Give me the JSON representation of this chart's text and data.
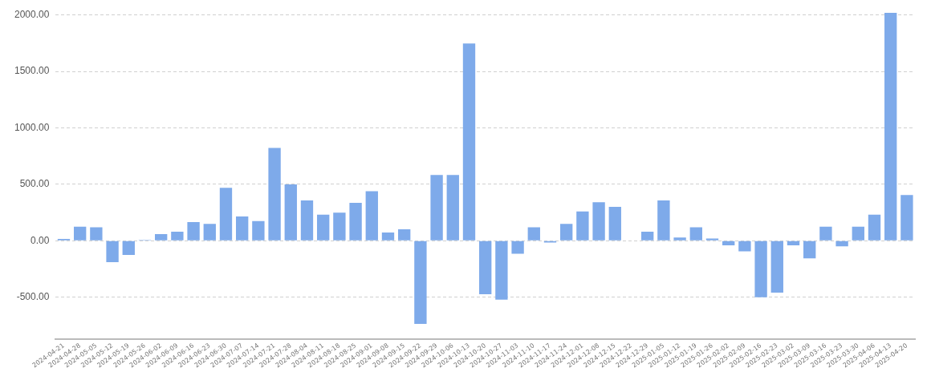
{
  "chart_data": {
    "type": "bar",
    "categories": [
      "2024-04-21",
      "2024-04-28",
      "2024-05-05",
      "2024-05-12",
      "2024-05-19",
      "2024-05-26",
      "2024-06-02",
      "2024-06-09",
      "2024-06-16",
      "2024-06-23",
      "2024-06-30",
      "2024-07-07",
      "2024-07-14",
      "2024-07-21",
      "2024-07-28",
      "2024-08-04",
      "2024-08-11",
      "2024-08-18",
      "2024-08-25",
      "2024-09-01",
      "2024-09-08",
      "2024-09-15",
      "2024-09-22",
      "2024-09-29",
      "2024-10-06",
      "2024-10-13",
      "2024-10-20",
      "2024-10-27",
      "2024-11-03",
      "2024-11-10",
      "2024-11-17",
      "2024-11-24",
      "2024-12-01",
      "2024-12-08",
      "2024-12-15",
      "2024-12-22",
      "2024-12-29",
      "2025-01-05",
      "2025-01-12",
      "2025-01-19",
      "2025-01-26",
      "2025-02-02",
      "2025-02-09",
      "2025-02-16",
      "2025-02-23",
      "2025-03-02",
      "2025-03-09",
      "2025-03-16",
      "2025-03-23",
      "2025-03-30",
      "2025-04-06",
      "2025-04-13",
      "2025-04-20"
    ],
    "values": [
      17,
      125,
      120,
      -189,
      -125,
      7,
      59,
      80,
      165,
      149,
      469,
      215,
      175,
      823,
      500,
      358,
      231,
      248,
      335,
      439,
      73,
      101,
      -736,
      583,
      583,
      1748,
      -474,
      -521,
      -116,
      120,
      -15,
      149,
      259,
      342,
      300,
      0,
      80,
      358,
      28,
      120,
      19,
      -40,
      -94,
      -500,
      -460,
      -40,
      -156,
      125,
      -50,
      125,
      231,
      2020,
      406
    ],
    "color": "#7eaaea",
    "ylim": [
      -875,
      2025
    ],
    "yticks": [
      {
        "value": -500,
        "label": "-500.00"
      },
      {
        "value": 0,
        "label": "0.00"
      },
      {
        "value": 500,
        "label": "500.00"
      },
      {
        "value": 1000,
        "label": "1000.00"
      },
      {
        "value": 1500,
        "label": "1500.00"
      },
      {
        "value": 2000,
        "label": "2000.00"
      }
    ],
    "grid": "y",
    "legend": false
  }
}
